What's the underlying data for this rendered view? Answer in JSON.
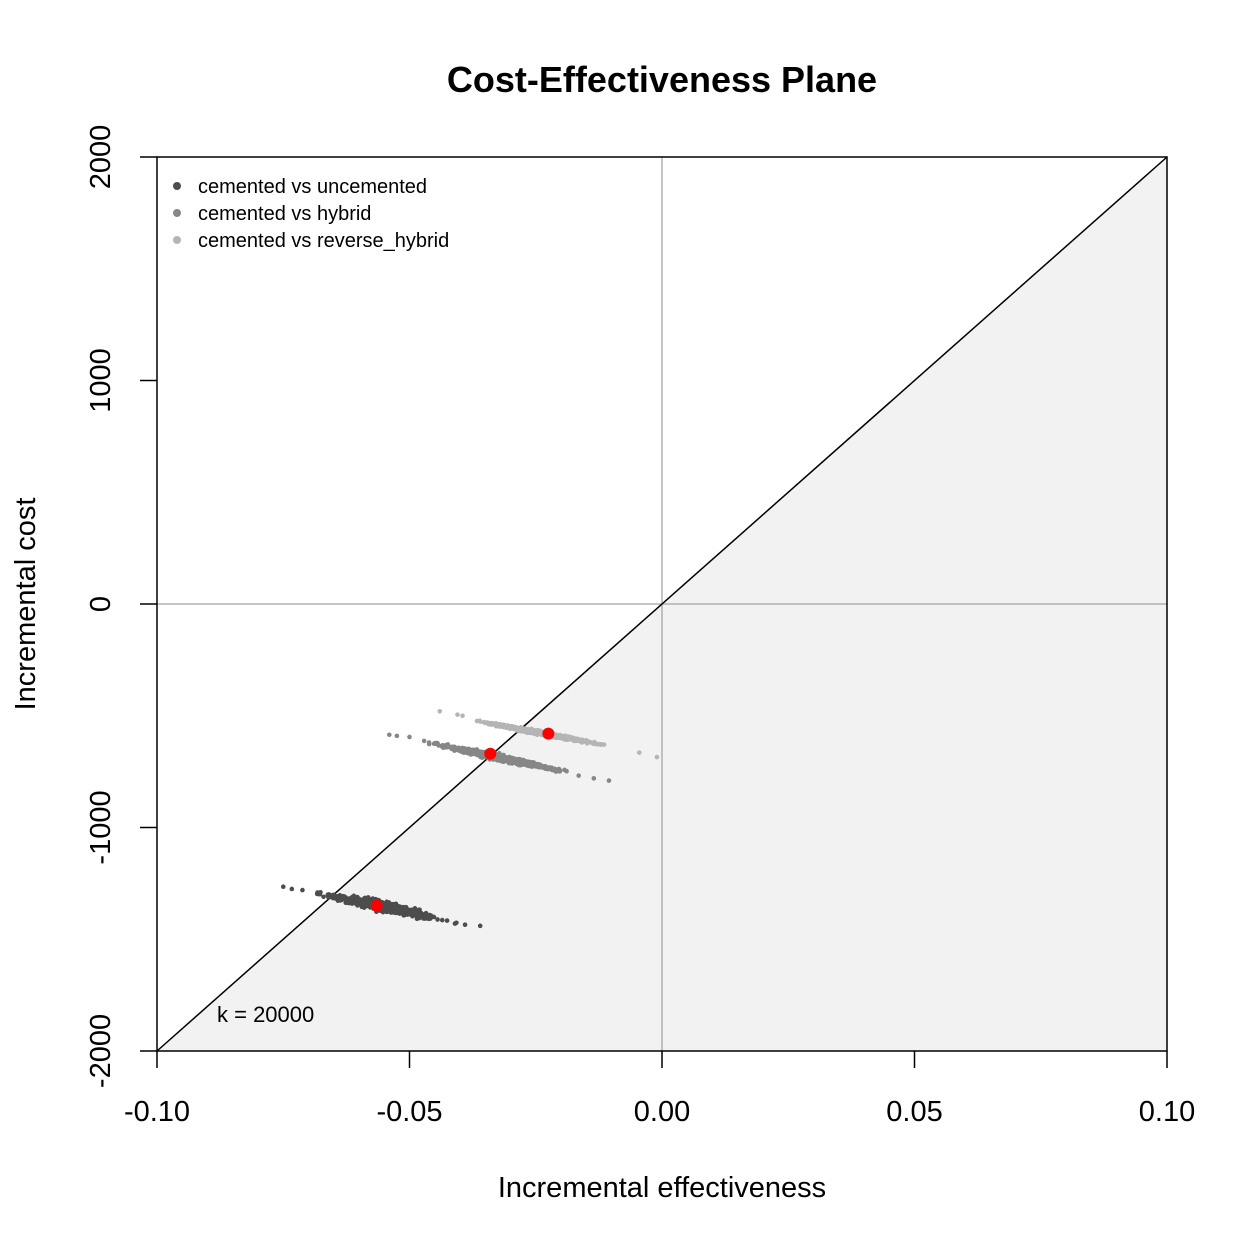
{
  "chart_data": {
    "type": "scatter",
    "title": "Cost-Effectiveness Plane",
    "xlabel": "Incremental effectiveness",
    "ylabel": "Incremental cost",
    "xlim": [
      -0.1,
      0.1
    ],
    "ylim": [
      -2000,
      2000
    ],
    "x_ticks": [
      -0.1,
      -0.05,
      0.0,
      0.05,
      0.1
    ],
    "x_tick_labels": [
      "-0.10",
      "-0.05",
      "0.00",
      "0.05",
      "0.10"
    ],
    "y_ticks": [
      -2000,
      -1000,
      0,
      1000,
      2000
    ],
    "y_tick_labels": [
      "-2000",
      "-1000",
      "0",
      "1000",
      "2000"
    ],
    "willingness_to_pay": 20000,
    "annotation": "k = 20000",
    "legend_position": "top-left",
    "colors": {
      "background_region": "#f2f2f2",
      "reference_lines": "#b0b0b0",
      "threshold_line": "#000000",
      "mean_point": "#ff0000"
    },
    "series": [
      {
        "name": "cemented vs uncemented",
        "color": "#4d4d4d",
        "mean": {
          "x": -0.0565,
          "y": -1350
        },
        "cloud": {
          "x_min": -0.075,
          "x_max": -0.036,
          "y_at_x_min": -1265,
          "y_at_x_max": -1440,
          "spread": 14
        },
        "points": [
          [
            -0.075,
            -1265
          ],
          [
            -0.0733,
            -1275
          ],
          [
            -0.0712,
            -1280
          ],
          [
            -0.036,
            -1440
          ],
          [
            -0.039,
            -1435
          ],
          [
            -0.041,
            -1430
          ]
        ]
      },
      {
        "name": "cemented vs hybrid",
        "color": "#878787",
        "mean": {
          "x": -0.034,
          "y": -670
        },
        "cloud": {
          "x_min": -0.054,
          "x_max": -0.0105,
          "y_at_x_min": -585,
          "y_at_x_max": -790,
          "spread": 9
        },
        "points": [
          [
            -0.054,
            -585
          ],
          [
            -0.0525,
            -590
          ],
          [
            -0.05,
            -595
          ],
          [
            -0.0105,
            -790
          ],
          [
            -0.0135,
            -780
          ],
          [
            -0.0165,
            -768
          ]
        ]
      },
      {
        "name": "cemented vs reverse_hybrid",
        "color": "#b5b5b5",
        "mean": {
          "x": -0.0225,
          "y": -580
        },
        "cloud": {
          "x_min": -0.0435,
          "x_max": -0.0045,
          "y_at_x_min": -495,
          "y_at_x_max": -660,
          "spread": 6
        },
        "points": [
          [
            -0.044,
            -480
          ],
          [
            -0.0405,
            -495
          ],
          [
            -0.0395,
            -500
          ],
          [
            -0.001,
            -685
          ],
          [
            -0.0045,
            -665
          ]
        ]
      }
    ]
  }
}
